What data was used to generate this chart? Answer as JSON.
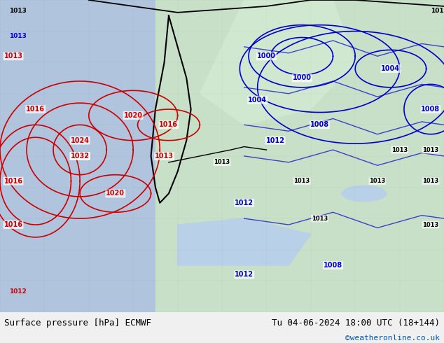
{
  "title_left": "Surface pressure [hPa] ECMWF",
  "title_right": "Tu 04-06-2024 18:00 UTC (18+144)",
  "credit": "©weatheronline.co.uk",
  "bg_color": "#f0f0f0",
  "map_bg": "#c8e6c9",
  "ocean_color": "#b0c4de",
  "land_color": "#c8dfc8",
  "footer_bg": "#e8e8e8",
  "red_contour_color": "#cc0000",
  "blue_contour_color": "#0000cc",
  "black_contour_color": "#000000",
  "credit_color": "#0055aa",
  "footer_text_color": "#000000",
  "fig_width": 6.34,
  "fig_height": 4.9,
  "dpi": 100
}
